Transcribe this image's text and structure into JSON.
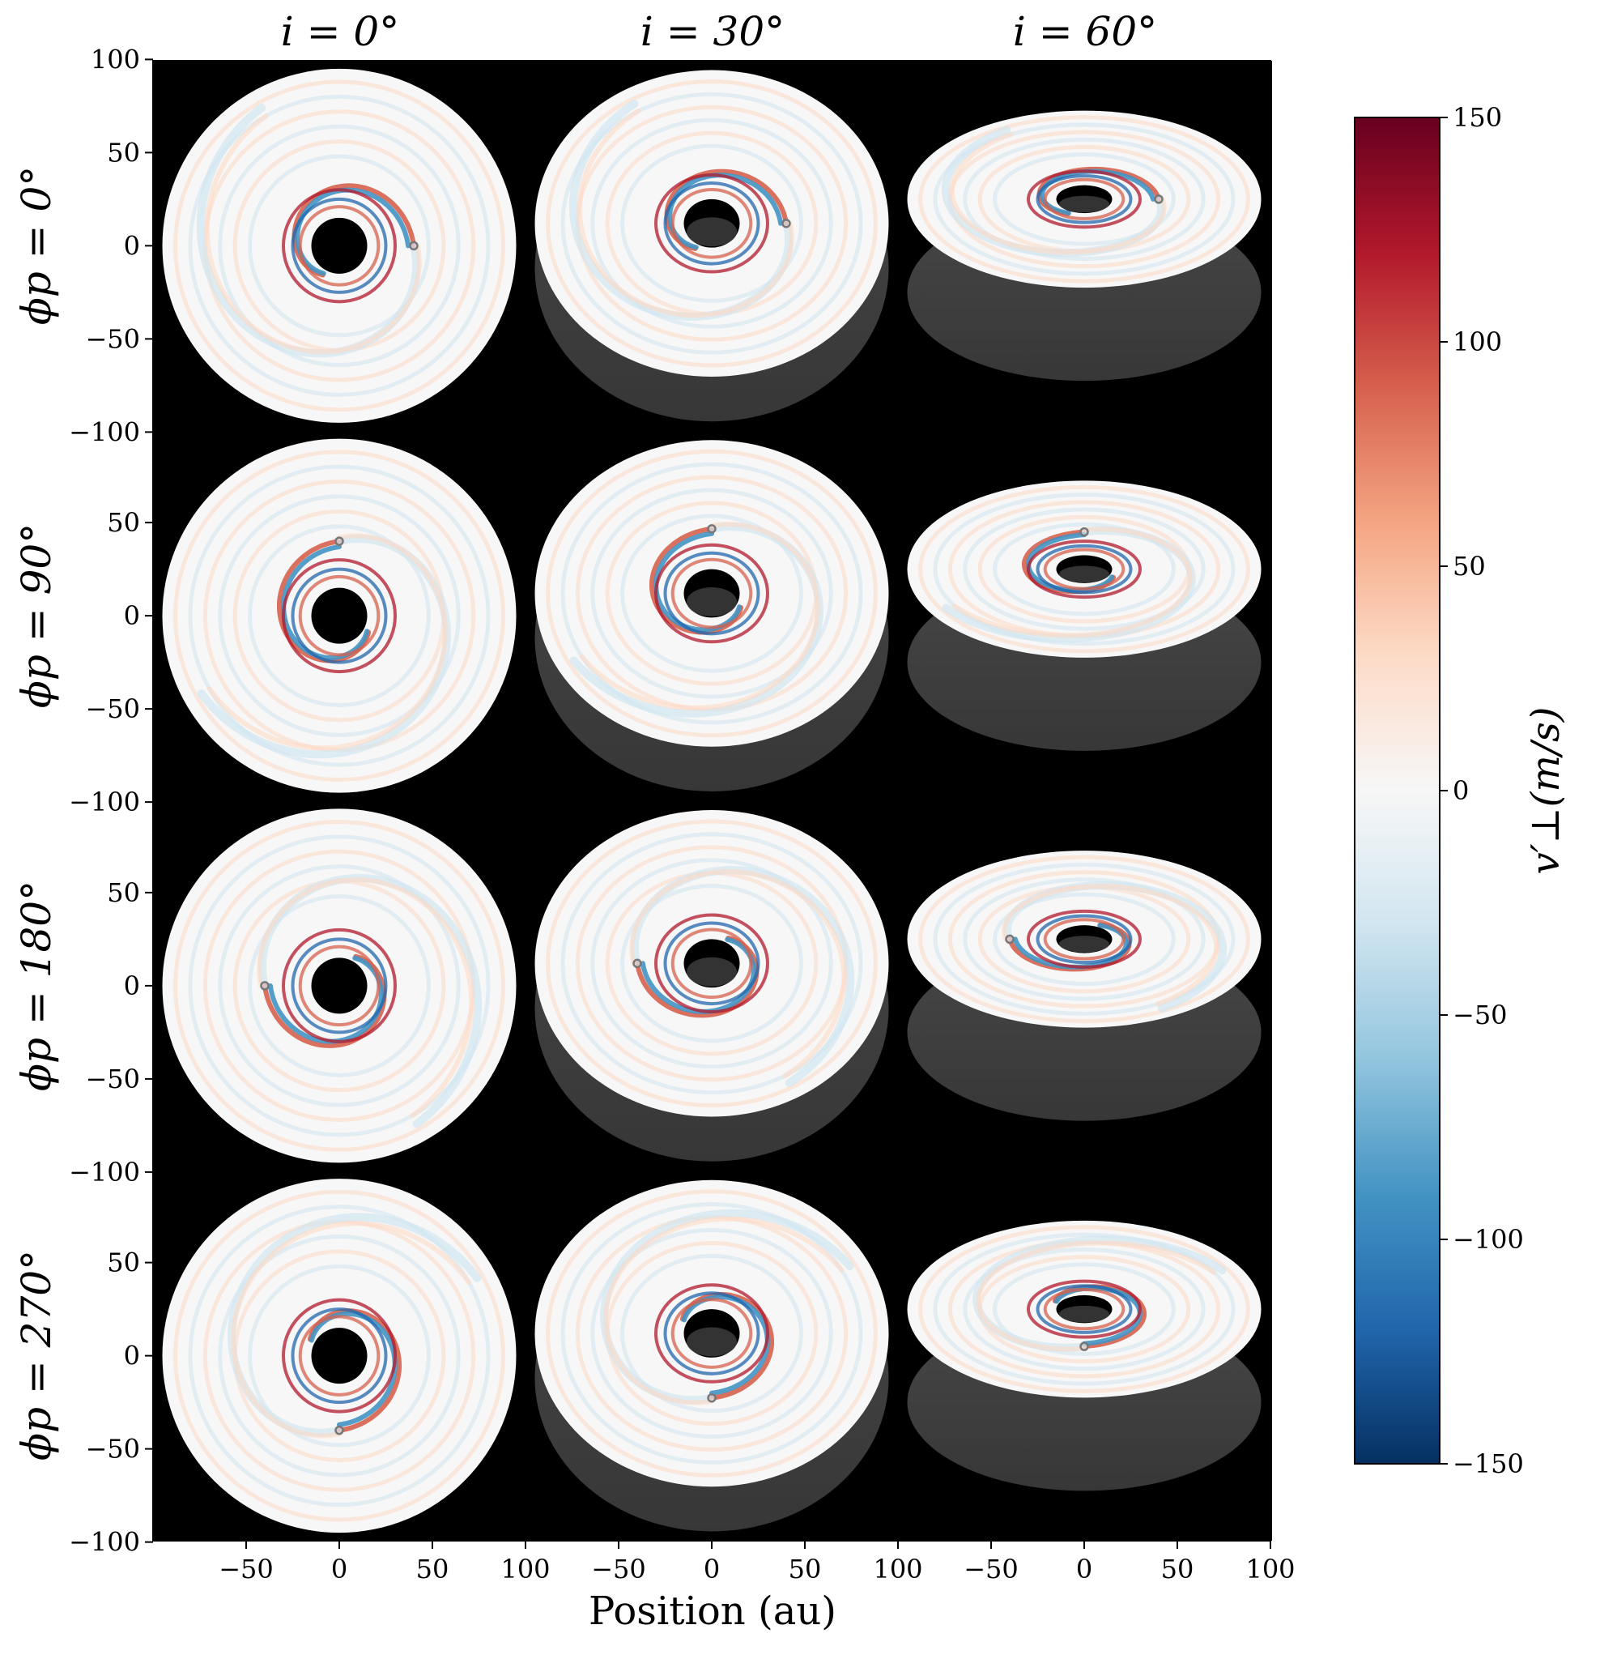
{
  "chart_data": {
    "type": "heatmap",
    "xlabel": "Position (au)",
    "colorbar": {
      "label": "v′⊥(m/s)",
      "range": [
        -150,
        150
      ],
      "ticks": [
        "150",
        "100",
        "50",
        "0",
        "−50",
        "−100",
        "−150"
      ],
      "tick_values": [
        150,
        100,
        50,
        0,
        -50,
        -100,
        -150
      ],
      "colormap": [
        "#67001f",
        "#b2182b",
        "#d6604d",
        "#f4a582",
        "#fddbc7",
        "#f7f7f7",
        "#d1e5f0",
        "#92c5de",
        "#4393c3",
        "#2166ac",
        "#053061"
      ]
    },
    "columns": [
      {
        "title": "i = 0°",
        "inclination_deg": 0,
        "x_ticks": [
          "−50",
          "0",
          "50",
          "100"
        ],
        "x_tick_values": [
          -50,
          0,
          50,
          100
        ]
      },
      {
        "title": "i = 30°",
        "inclination_deg": 30,
        "x_ticks": [
          "−50",
          "0",
          "50",
          "100"
        ],
        "x_tick_values": [
          -50,
          0,
          50,
          100
        ]
      },
      {
        "title": "i = 60°",
        "inclination_deg": 60,
        "x_ticks": [
          "−50",
          "0",
          "50",
          "100"
        ],
        "x_tick_values": [
          -50,
          0,
          50,
          100
        ]
      }
    ],
    "rows": [
      {
        "label": "ϕp = 0°",
        "phi_deg": 0,
        "y_ticks": [
          "100",
          "50",
          "0",
          "−50",
          "−100"
        ],
        "y_tick_values": [
          100,
          50,
          0,
          -50,
          -100
        ]
      },
      {
        "label": "ϕp = 90°",
        "phi_deg": 90,
        "y_ticks": [
          "50",
          "0",
          "−50",
          "−100"
        ],
        "y_tick_values": [
          50,
          0,
          -50,
          -100
        ]
      },
      {
        "label": "ϕp = 180°",
        "phi_deg": 180,
        "y_ticks": [
          "50",
          "0",
          "−50",
          "−100"
        ],
        "y_tick_values": [
          50,
          0,
          -50,
          -100
        ]
      },
      {
        "label": "ϕp = 270°",
        "phi_deg": 270,
        "y_ticks": [
          "50",
          "0",
          "−50",
          "−100"
        ],
        "y_tick_values": [
          50,
          0,
          -50,
          -100
        ]
      }
    ],
    "panel_x_range": [
      -100,
      100
    ],
    "panel_y_range": [
      -100,
      100
    ],
    "disk_outer_radius_au": 95,
    "disk_inner_radius_au": 15,
    "planet_radius_au": 40,
    "background": "#000000"
  }
}
